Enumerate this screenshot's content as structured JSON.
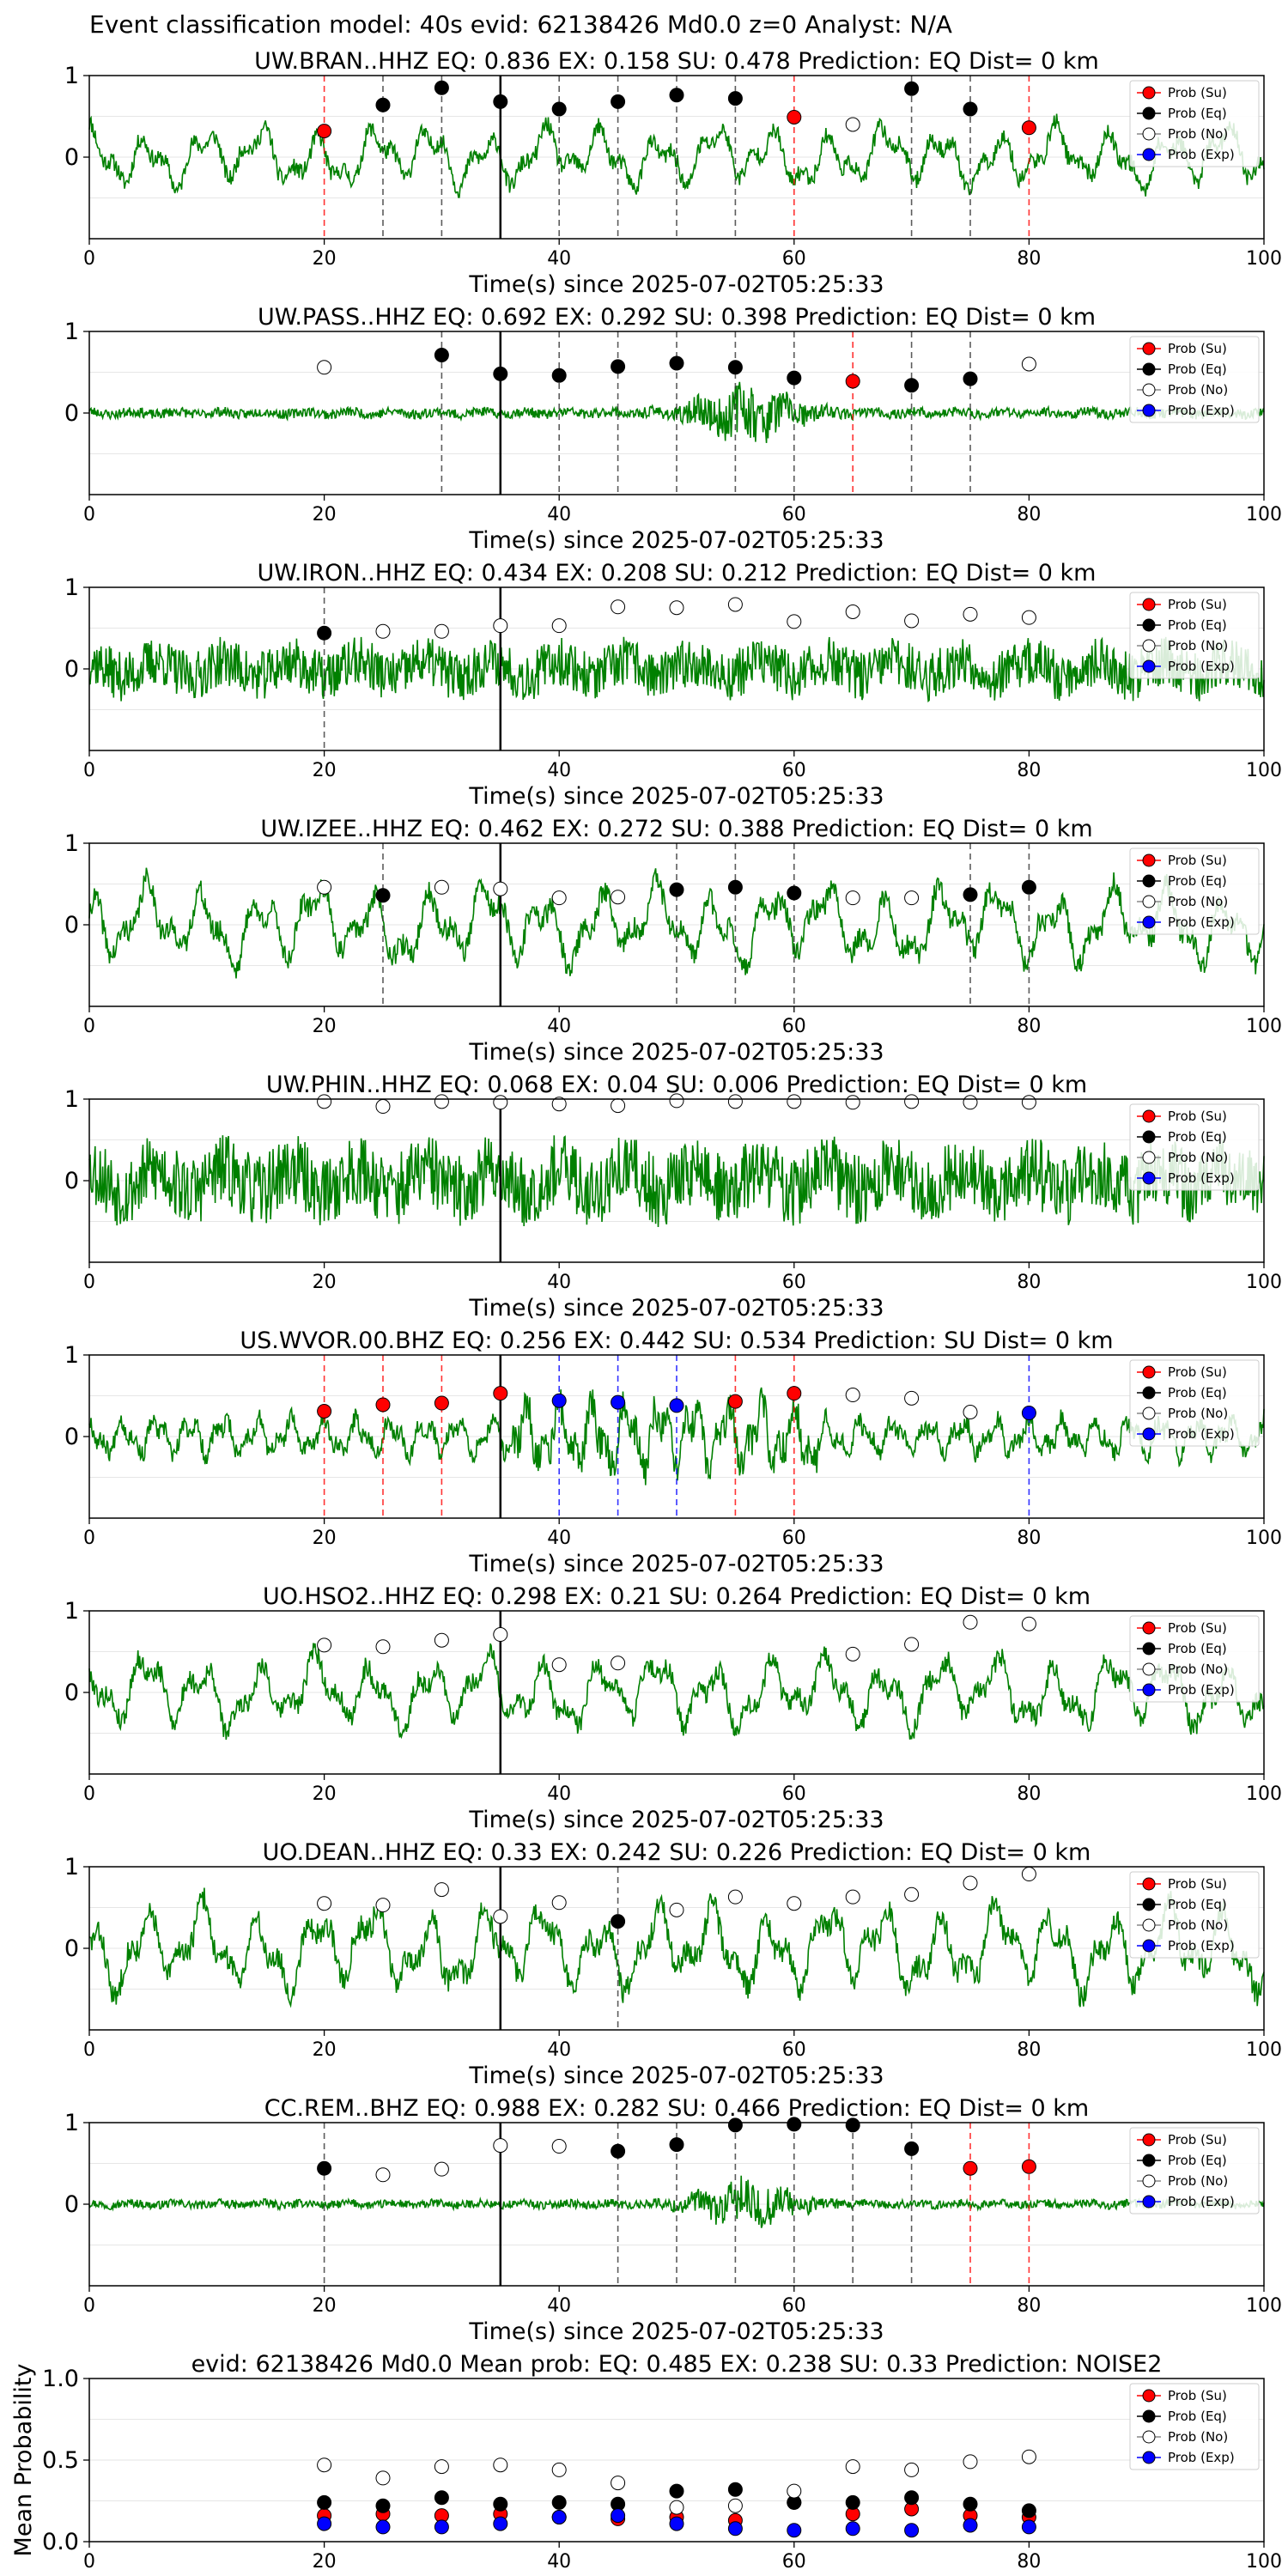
{
  "suptitle": "Event classification model: 40s evid: 62138426 Md0.0 z=0 Analyst: N/A",
  "legend": [
    "Prob (Su)",
    "Prob (Eq)",
    "Prob (No)",
    "Prob (Exp)"
  ],
  "colors": {
    "waveform": "#008000",
    "su": "#ff0000",
    "eq": "#000000",
    "no": "#ffffff",
    "exp": "#0000ff",
    "arrival_line": "#000000",
    "grid": "#e6e6e6"
  },
  "chart_data": [
    {
      "type": "line",
      "title": "UW.BRAN..HHZ   EQ: 0.836  EX: 0.158  SU: 0.478   Prediction: EQ    Dist= 0 km",
      "xlabel": "Time(s) since 2025-07-02T05:25:33",
      "xlim": [
        0,
        100
      ],
      "ylim": [
        -1,
        1
      ],
      "xticks": [
        "0",
        "20",
        "40",
        "60",
        "80",
        "100"
      ],
      "yticks": [
        "1",
        "0"
      ],
      "arrival": 35,
      "waveform": {
        "amp": 0.42,
        "style": "lowfreq",
        "seed": 11
      },
      "windows": [
        {
          "t": 20,
          "class": "su",
          "p": 0.32
        },
        {
          "t": 25,
          "class": "eq",
          "p": 0.64
        },
        {
          "t": 30,
          "class": "eq",
          "p": 0.85
        },
        {
          "t": 35,
          "class": "eq",
          "p": 0.68
        },
        {
          "t": 40,
          "class": "eq",
          "p": 0.59
        },
        {
          "t": 45,
          "class": "eq",
          "p": 0.68
        },
        {
          "t": 50,
          "class": "eq",
          "p": 0.76
        },
        {
          "t": 55,
          "class": "eq",
          "p": 0.72
        },
        {
          "t": 60,
          "class": "su",
          "p": 0.49
        },
        {
          "t": 65,
          "class": "no",
          "p": 0.4
        },
        {
          "t": 70,
          "class": "eq",
          "p": 0.84
        },
        {
          "t": 75,
          "class": "eq",
          "p": 0.59
        },
        {
          "t": 80,
          "class": "su",
          "p": 0.36
        }
      ]
    },
    {
      "type": "line",
      "title": "UW.PASS..HHZ   EQ: 0.692  EX: 0.292  SU: 0.398   Prediction: EQ    Dist= 0 km",
      "xlabel": "Time(s) since 2025-07-02T05:25:33",
      "xlim": [
        0,
        100
      ],
      "ylim": [
        -1,
        1
      ],
      "xticks": [
        "0",
        "20",
        "40",
        "60",
        "80",
        "100"
      ],
      "yticks": [
        "1",
        "0"
      ],
      "arrival": 35,
      "waveform": {
        "amp": 0.12,
        "style": "burst",
        "seed": 23
      },
      "windows": [
        {
          "t": 20,
          "class": "no",
          "p": 0.56
        },
        {
          "t": 30,
          "class": "eq",
          "p": 0.71
        },
        {
          "t": 35,
          "class": "eq",
          "p": 0.48
        },
        {
          "t": 40,
          "class": "eq",
          "p": 0.46
        },
        {
          "t": 45,
          "class": "eq",
          "p": 0.57
        },
        {
          "t": 50,
          "class": "eq",
          "p": 0.61
        },
        {
          "t": 55,
          "class": "eq",
          "p": 0.56
        },
        {
          "t": 60,
          "class": "eq",
          "p": 0.43
        },
        {
          "t": 65,
          "class": "su",
          "p": 0.39
        },
        {
          "t": 70,
          "class": "eq",
          "p": 0.34
        },
        {
          "t": 75,
          "class": "eq",
          "p": 0.42
        },
        {
          "t": 80,
          "class": "no",
          "p": 0.6
        }
      ]
    },
    {
      "type": "line",
      "title": "UW.IRON..HHZ   EQ: 0.434  EX: 0.208  SU: 0.212   Prediction: EQ    Dist= 0 km",
      "xlabel": "Time(s) since 2025-07-02T05:25:33",
      "xlim": [
        0,
        100
      ],
      "ylim": [
        -1,
        1
      ],
      "xticks": [
        "0",
        "20",
        "40",
        "60",
        "80",
        "100"
      ],
      "yticks": [
        "1",
        "0"
      ],
      "arrival": 35,
      "waveform": {
        "amp": 0.38,
        "style": "noisy",
        "seed": 37
      },
      "windows": [
        {
          "t": 20,
          "class": "eq",
          "p": 0.44
        },
        {
          "t": 25,
          "class": "no",
          "p": 0.46
        },
        {
          "t": 30,
          "class": "no",
          "p": 0.46
        },
        {
          "t": 35,
          "class": "no",
          "p": 0.53
        },
        {
          "t": 40,
          "class": "no",
          "p": 0.53
        },
        {
          "t": 45,
          "class": "no",
          "p": 0.76
        },
        {
          "t": 50,
          "class": "no",
          "p": 0.75
        },
        {
          "t": 55,
          "class": "no",
          "p": 0.79
        },
        {
          "t": 60,
          "class": "no",
          "p": 0.58
        },
        {
          "t": 65,
          "class": "no",
          "p": 0.7
        },
        {
          "t": 70,
          "class": "no",
          "p": 0.59
        },
        {
          "t": 75,
          "class": "no",
          "p": 0.67
        },
        {
          "t": 80,
          "class": "no",
          "p": 0.63
        }
      ]
    },
    {
      "type": "line",
      "title": "UW.IZEE..HHZ   EQ: 0.462  EX: 0.272  SU: 0.388   Prediction: EQ    Dist= 0 km",
      "xlabel": "Time(s) since 2025-07-02T05:25:33",
      "xlim": [
        0,
        100
      ],
      "ylim": [
        -1,
        1
      ],
      "xticks": [
        "0",
        "20",
        "40",
        "60",
        "80",
        "100"
      ],
      "yticks": [
        "1",
        "0"
      ],
      "arrival": 35,
      "waveform": {
        "amp": 0.55,
        "style": "lowfreq",
        "seed": 41
      },
      "windows": [
        {
          "t": 20,
          "class": "no",
          "p": 0.46
        },
        {
          "t": 25,
          "class": "eq",
          "p": 0.36
        },
        {
          "t": 30,
          "class": "no",
          "p": 0.46
        },
        {
          "t": 35,
          "class": "no",
          "p": 0.44
        },
        {
          "t": 40,
          "class": "no",
          "p": 0.33
        },
        {
          "t": 45,
          "class": "no",
          "p": 0.34
        },
        {
          "t": 50,
          "class": "eq",
          "p": 0.43
        },
        {
          "t": 55,
          "class": "eq",
          "p": 0.46
        },
        {
          "t": 60,
          "class": "eq",
          "p": 0.39
        },
        {
          "t": 65,
          "class": "no",
          "p": 0.33
        },
        {
          "t": 70,
          "class": "no",
          "p": 0.33
        },
        {
          "t": 75,
          "class": "eq",
          "p": 0.37
        },
        {
          "t": 80,
          "class": "eq",
          "p": 0.46
        }
      ]
    },
    {
      "type": "line",
      "title": "UW.PHIN..HHZ   EQ: 0.068  EX: 0.04  SU: 0.006   Prediction: EQ    Dist= 0 km",
      "xlabel": "Time(s) since 2025-07-02T05:25:33",
      "xlim": [
        0,
        100
      ],
      "ylim": [
        -1,
        1
      ],
      "xticks": [
        "0",
        "20",
        "40",
        "60",
        "80",
        "100"
      ],
      "yticks": [
        "1",
        "0"
      ],
      "arrival": 35,
      "waveform": {
        "amp": 0.55,
        "style": "noisy",
        "seed": 53
      },
      "windows": [
        {
          "t": 20,
          "class": "no",
          "p": 0.97
        },
        {
          "t": 25,
          "class": "no",
          "p": 0.91
        },
        {
          "t": 30,
          "class": "no",
          "p": 0.97
        },
        {
          "t": 35,
          "class": "no",
          "p": 0.96
        },
        {
          "t": 40,
          "class": "no",
          "p": 0.94
        },
        {
          "t": 45,
          "class": "no",
          "p": 0.92
        },
        {
          "t": 50,
          "class": "no",
          "p": 0.98
        },
        {
          "t": 55,
          "class": "no",
          "p": 0.97
        },
        {
          "t": 60,
          "class": "no",
          "p": 0.97
        },
        {
          "t": 65,
          "class": "no",
          "p": 0.96
        },
        {
          "t": 70,
          "class": "no",
          "p": 0.97
        },
        {
          "t": 75,
          "class": "no",
          "p": 0.96
        },
        {
          "t": 80,
          "class": "no",
          "p": 0.96
        }
      ]
    },
    {
      "type": "line",
      "title": "US.WVOR.00.BHZ   EQ: 0.256  EX: 0.442  SU: 0.534   Prediction: SU    Dist= 0 km",
      "xlabel": "Time(s) since 2025-07-02T05:25:33",
      "xlim": [
        0,
        100
      ],
      "ylim": [
        -1,
        1
      ],
      "xticks": [
        "0",
        "20",
        "40",
        "60",
        "80",
        "100"
      ],
      "yticks": [
        "1",
        "0"
      ],
      "arrival": 35,
      "waveform": {
        "amp": 0.45,
        "style": "spiky",
        "seed": 67
      },
      "windows": [
        {
          "t": 20,
          "class": "su",
          "p": 0.31
        },
        {
          "t": 25,
          "class": "su",
          "p": 0.39
        },
        {
          "t": 30,
          "class": "su",
          "p": 0.41
        },
        {
          "t": 35,
          "class": "su",
          "p": 0.53
        },
        {
          "t": 40,
          "class": "exp",
          "p": 0.44
        },
        {
          "t": 45,
          "class": "exp",
          "p": 0.42
        },
        {
          "t": 50,
          "class": "exp",
          "p": 0.38
        },
        {
          "t": 55,
          "class": "su",
          "p": 0.43
        },
        {
          "t": 60,
          "class": "su",
          "p": 0.53
        },
        {
          "t": 65,
          "class": "no",
          "p": 0.51
        },
        {
          "t": 70,
          "class": "no",
          "p": 0.47
        },
        {
          "t": 75,
          "class": "no",
          "p": 0.3
        },
        {
          "t": 80,
          "class": "exp",
          "p": 0.29
        }
      ]
    },
    {
      "type": "line",
      "title": "UO.HSO2..HHZ   EQ: 0.298  EX: 0.21  SU: 0.264   Prediction: EQ    Dist= 0 km",
      "xlabel": "Time(s) since 2025-07-02T05:25:33",
      "xlim": [
        0,
        100
      ],
      "ylim": [
        -1,
        1
      ],
      "xticks": [
        "0",
        "20",
        "40",
        "60",
        "80",
        "100"
      ],
      "yticks": [
        "1",
        "0"
      ],
      "arrival": 35,
      "waveform": {
        "amp": 0.5,
        "style": "lowfreq",
        "seed": 79
      },
      "windows": [
        {
          "t": 20,
          "class": "no",
          "p": 0.58
        },
        {
          "t": 25,
          "class": "no",
          "p": 0.56
        },
        {
          "t": 30,
          "class": "no",
          "p": 0.64
        },
        {
          "t": 35,
          "class": "no",
          "p": 0.71
        },
        {
          "t": 40,
          "class": "no",
          "p": 0.34
        },
        {
          "t": 45,
          "class": "no",
          "p": 0.36
        },
        {
          "t": 65,
          "class": "no",
          "p": 0.47
        },
        {
          "t": 70,
          "class": "no",
          "p": 0.59
        },
        {
          "t": 75,
          "class": "no",
          "p": 0.86
        },
        {
          "t": 80,
          "class": "no",
          "p": 0.84
        }
      ]
    },
    {
      "type": "line",
      "title": "UO.DEAN..HHZ   EQ: 0.33  EX: 0.242  SU: 0.226   Prediction: EQ    Dist= 0 km",
      "xlabel": "Time(s) since 2025-07-02T05:25:33",
      "xlim": [
        0,
        100
      ],
      "ylim": [
        -1,
        1
      ],
      "xticks": [
        "0",
        "20",
        "40",
        "60",
        "80",
        "100"
      ],
      "yticks": [
        "1",
        "0"
      ],
      "arrival": 35,
      "waveform": {
        "amp": 0.6,
        "style": "lowfreq",
        "seed": 83
      },
      "windows": [
        {
          "t": 20,
          "class": "no",
          "p": 0.55
        },
        {
          "t": 25,
          "class": "no",
          "p": 0.53
        },
        {
          "t": 30,
          "class": "no",
          "p": 0.72
        },
        {
          "t": 35,
          "class": "no",
          "p": 0.39
        },
        {
          "t": 40,
          "class": "no",
          "p": 0.56
        },
        {
          "t": 45,
          "class": "eq",
          "p": 0.33
        },
        {
          "t": 50,
          "class": "no",
          "p": 0.47
        },
        {
          "t": 55,
          "class": "no",
          "p": 0.63
        },
        {
          "t": 60,
          "class": "no",
          "p": 0.55
        },
        {
          "t": 65,
          "class": "no",
          "p": 0.63
        },
        {
          "t": 70,
          "class": "no",
          "p": 0.66
        },
        {
          "t": 75,
          "class": "no",
          "p": 0.8
        },
        {
          "t": 80,
          "class": "no",
          "p": 0.91
        }
      ]
    },
    {
      "type": "line",
      "title": "CC.REM..BHZ   EQ: 0.988  EX: 0.282  SU: 0.466   Prediction: EQ    Dist= 0 km",
      "xlabel": "Time(s) since 2025-07-02T05:25:33",
      "xlim": [
        0,
        100
      ],
      "ylim": [
        -1,
        1
      ],
      "xticks": [
        "0",
        "20",
        "40",
        "60",
        "80",
        "100"
      ],
      "yticks": [
        "1",
        "0"
      ],
      "arrival": 35,
      "waveform": {
        "amp": 0.1,
        "style": "burst",
        "seed": 97
      },
      "windows": [
        {
          "t": 20,
          "class": "eq",
          "p": 0.44
        },
        {
          "t": 25,
          "class": "no",
          "p": 0.36
        },
        {
          "t": 30,
          "class": "no",
          "p": 0.43
        },
        {
          "t": 35,
          "class": "no",
          "p": 0.72
        },
        {
          "t": 40,
          "class": "no",
          "p": 0.71
        },
        {
          "t": 45,
          "class": "eq",
          "p": 0.65
        },
        {
          "t": 50,
          "class": "eq",
          "p": 0.73
        },
        {
          "t": 55,
          "class": "eq",
          "p": 0.97
        },
        {
          "t": 60,
          "class": "eq",
          "p": 0.98
        },
        {
          "t": 65,
          "class": "eq",
          "p": 0.97
        },
        {
          "t": 70,
          "class": "eq",
          "p": 0.68
        },
        {
          "t": 75,
          "class": "su",
          "p": 0.44
        },
        {
          "t": 80,
          "class": "su",
          "p": 0.46
        }
      ]
    },
    {
      "type": "scatter",
      "title": "evid: 62138426  Md0.0   Mean prob:    EQ: 0.485  EX: 0.238  SU: 0.33   Prediction: NOISE2",
      "ylabel": "Mean Probability",
      "xlim": [
        0,
        100
      ],
      "ylim": [
        0,
        1
      ],
      "xticks": [
        "0",
        "20",
        "40",
        "60",
        "80",
        "100"
      ],
      "yticks": [
        "0.0",
        "0.5",
        "1.0"
      ],
      "x": [
        20,
        25,
        30,
        35,
        40,
        45,
        50,
        55,
        60,
        65,
        70,
        75,
        80
      ],
      "series": [
        {
          "name": "Prob (Su)",
          "class": "su",
          "values": [
            0.16,
            0.17,
            0.16,
            0.17,
            0.15,
            0.14,
            0.15,
            0.13,
            0.24,
            0.17,
            0.2,
            0.16,
            0.15
          ]
        },
        {
          "name": "Prob (Eq)",
          "class": "eq",
          "values": [
            0.24,
            0.22,
            0.27,
            0.23,
            0.24,
            0.23,
            0.31,
            0.32,
            0.24,
            0.24,
            0.27,
            0.23,
            0.19
          ]
        },
        {
          "name": "Prob (No)",
          "class": "no",
          "values": [
            0.47,
            0.39,
            0.46,
            0.47,
            0.44,
            0.36,
            0.21,
            0.22,
            0.31,
            0.46,
            0.44,
            0.49,
            0.52
          ]
        },
        {
          "name": "Prob (Exp)",
          "class": "exp",
          "values": [
            0.11,
            0.09,
            0.09,
            0.11,
            0.15,
            0.16,
            0.11,
            0.08,
            0.07,
            0.08,
            0.07,
            0.1,
            0.09
          ]
        }
      ]
    }
  ]
}
